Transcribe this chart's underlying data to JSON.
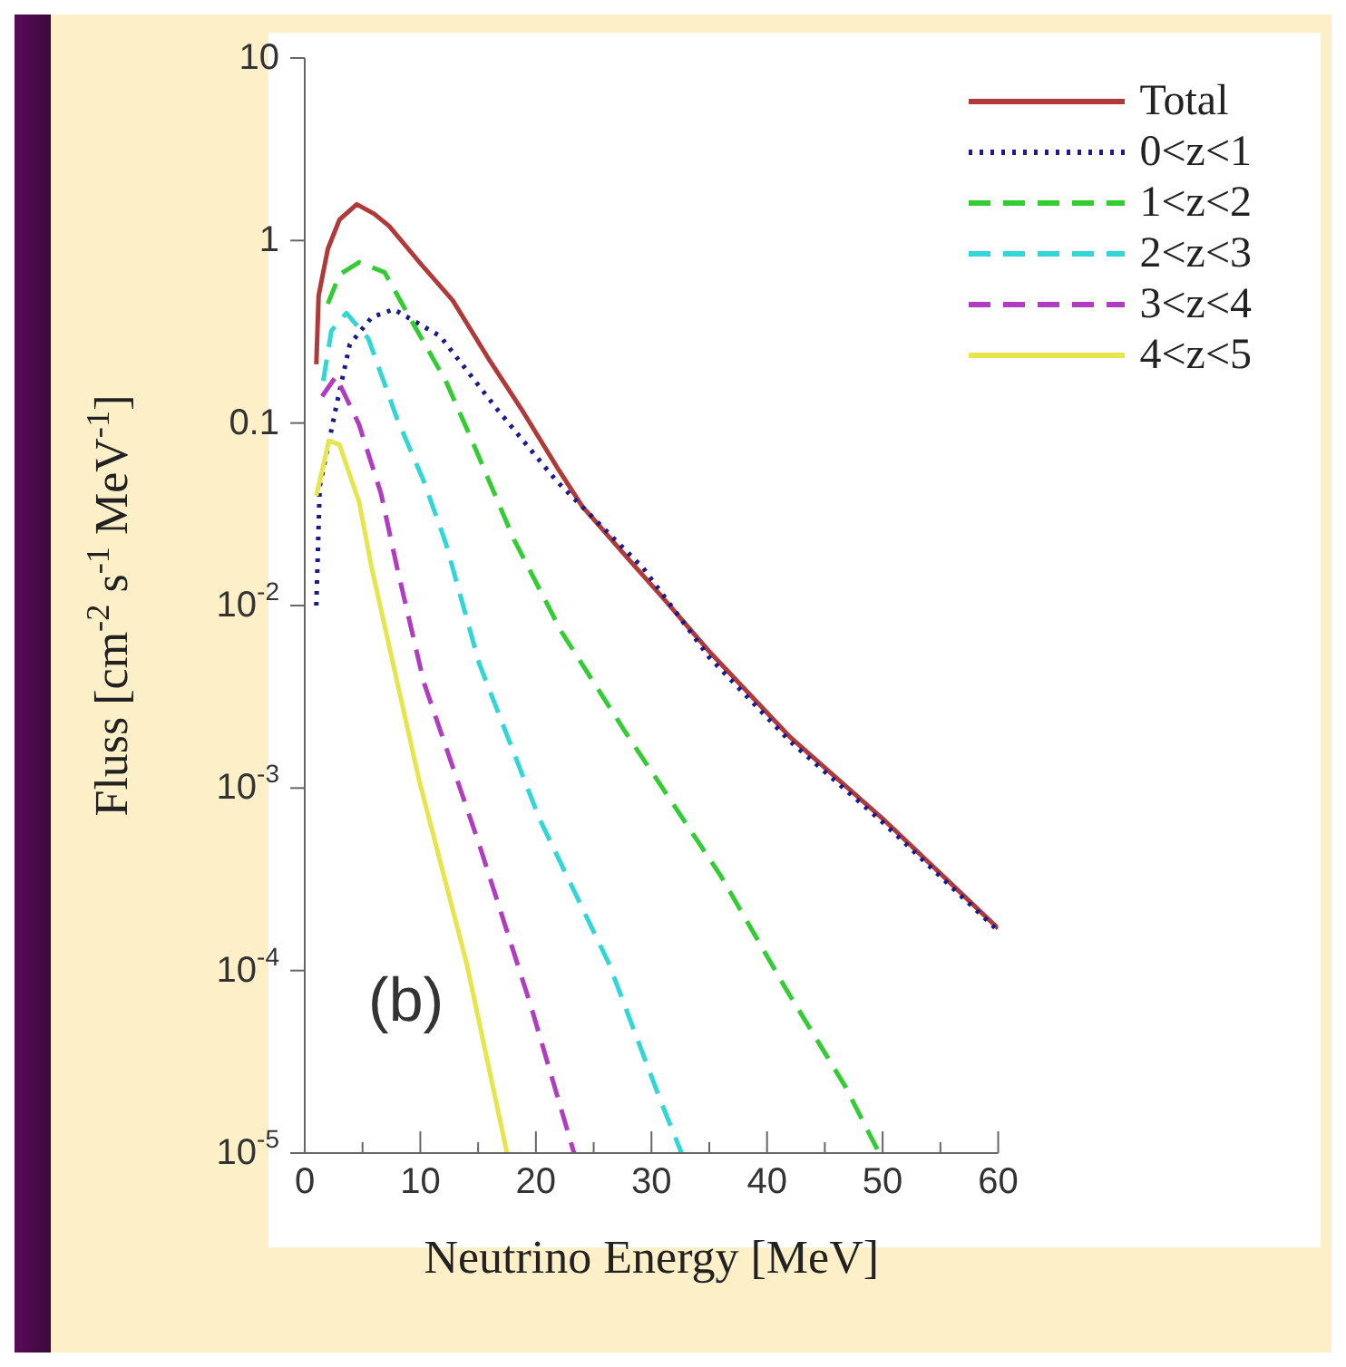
{
  "chart_data": {
    "type": "line",
    "xlabel": "Neutrino Energy [MeV]",
    "ylabel": "Fluss [cm$^{-2}$ s$^{-1}$ MeV$^{-1}$]",
    "log": "y",
    "xlim": [
      0,
      60
    ],
    "xticks": [
      0,
      {
        "value": 5,
        "label": null
      },
      10,
      {
        "value": 15,
        "label": null
      },
      20,
      {
        "value": 25,
        "label": null
      },
      30,
      {
        "value": 35,
        "label": null
      },
      40,
      {
        "value": 45,
        "label": null
      },
      50,
      {
        "value": 55,
        "label": null
      },
      60
    ],
    "ylim": [
      1e-05,
      10
    ],
    "yticks": [
      {
        "value": 1e-05,
        "label": "10$^{-5}$"
      },
      {
        "value": 0.0001,
        "label": "10$^{-4}$"
      },
      {
        "value": 0.001,
        "label": "10$^{-3}$"
      },
      {
        "value": 0.01,
        "label": "10$^{-2}$"
      },
      0.1,
      1,
      10
    ],
    "legend": "top right",
    "annotations": [
      "(b)"
    ],
    "series": [
      {
        "name": "Total",
        "color": "#b03a3a",
        "line_style": "solid",
        "x": [
          1,
          1.2,
          2,
          3,
          4.5,
          6,
          7.3,
          10,
          12.8,
          16,
          18.9,
          22,
          24,
          28,
          31,
          35,
          42,
          50,
          55,
          60
        ],
        "values": [
          0.21,
          0.5,
          0.9,
          1.3,
          1.58,
          1.4,
          1.2,
          0.75,
          0.47,
          0.22,
          0.115,
          0.055,
          0.035,
          0.018,
          0.011,
          0.0056,
          0.0019,
          0.00068,
          0.00034,
          0.00017
        ]
      },
      {
        "name": "0<z<1",
        "color": "#1a1a8c",
        "line_style": "dotted",
        "x": [
          1,
          1.3,
          2.8,
          3.9,
          5.8,
          7.7,
          11.7,
          16.6,
          21.8,
          29.3,
          35,
          42,
          50,
          60
        ],
        "values": [
          0.01,
          0.045,
          0.13,
          0.27,
          0.38,
          0.42,
          0.3,
          0.12,
          0.048,
          0.016,
          0.0052,
          0.0018,
          0.00065,
          0.000165
        ]
      },
      {
        "name": "1<z<2",
        "color": "#33cc33",
        "line_style": "dashed",
        "x": [
          2,
          3,
          4.7,
          6.9,
          9.5,
          12.2,
          14.4,
          18.1,
          22.2,
          27.8,
          36,
          41.6,
          46.8,
          49.7
        ],
        "values": [
          0.45,
          0.65,
          0.76,
          0.67,
          0.34,
          0.17,
          0.082,
          0.023,
          0.0072,
          0.002,
          0.00033,
          8e-05,
          2.3e-05,
          1e-05
        ]
      },
      {
        "name": "2<z<3",
        "color": "#33d6d6",
        "line_style": "dashed",
        "x": [
          1.6,
          2.3,
          3.6,
          5.5,
          8,
          10.3,
          12.2,
          15.1,
          20.3,
          26.3,
          30.7,
          32.6
        ],
        "values": [
          0.17,
          0.32,
          0.4,
          0.29,
          0.105,
          0.048,
          0.022,
          0.0048,
          0.00068,
          0.00011,
          2e-05,
          1e-05
        ]
      },
      {
        "name": "3<z<4",
        "color": "#b03cc0",
        "line_style": "dashed",
        "x": [
          1.5,
          2.7,
          4.7,
          6.6,
          8,
          10.3,
          15.1,
          19.6,
          23.3
        ],
        "values": [
          0.14,
          0.18,
          0.098,
          0.041,
          0.016,
          0.0038,
          0.00049,
          6.3e-05,
          1e-05
        ]
      },
      {
        "name": "4<z<5",
        "color": "#e6e64c",
        "line_style": "solid",
        "x": [
          1,
          2.1,
          3,
          4.7,
          5.8,
          9.9,
          14,
          17.5
        ],
        "values": [
          0.04,
          0.08,
          0.076,
          0.037,
          0.016,
          0.0011,
          0.00011,
          1e-05
        ]
      }
    ]
  }
}
